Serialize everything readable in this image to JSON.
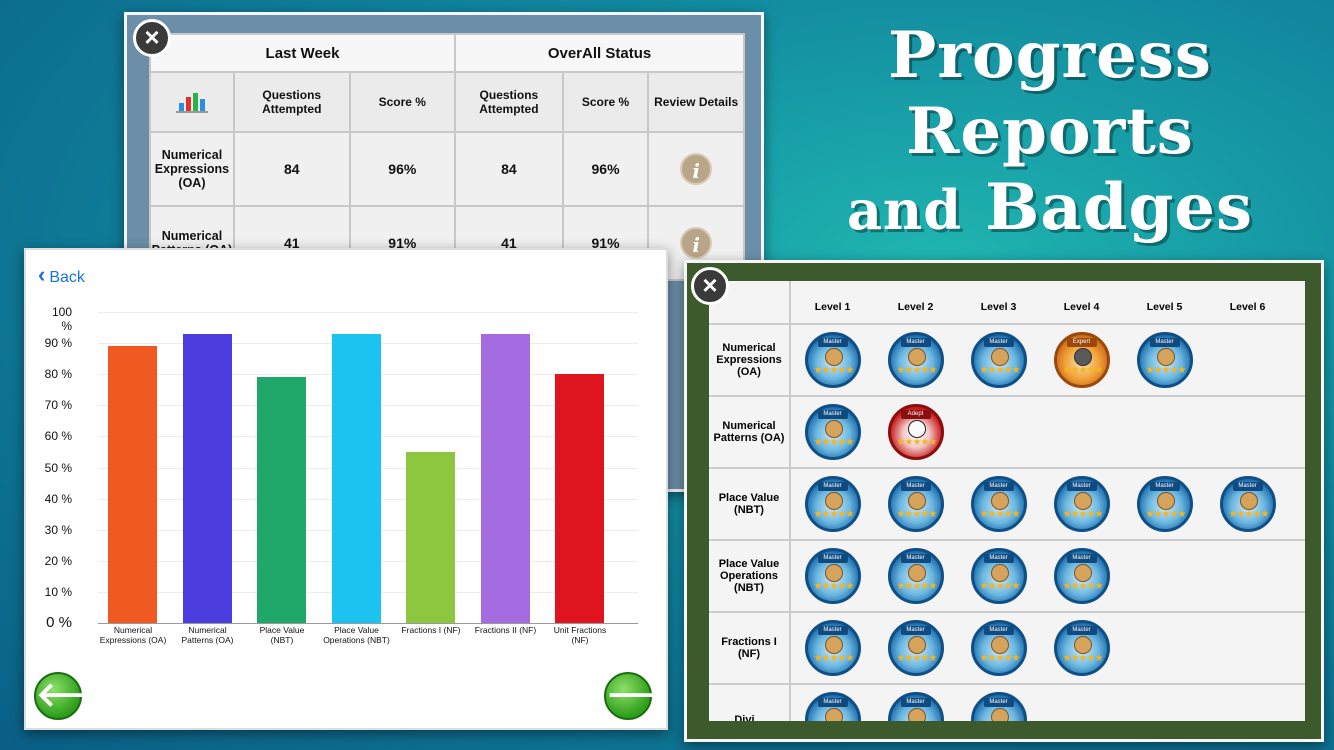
{
  "headline": {
    "line1": "Progress",
    "line2": "Reports",
    "line3_small": "and",
    "line3_big": "Badges"
  },
  "progress_table": {
    "close_label": "×",
    "group_headers": [
      "Last Week",
      "OverAll Status"
    ],
    "columns": [
      "Questions Attempted",
      "Score %",
      "Questions Attempted",
      "Score %",
      "Review Details"
    ],
    "rows": [
      {
        "topic": "Numerical Expressions (OA)",
        "lw_questions": "84",
        "lw_score": "96%",
        "all_questions": "84",
        "all_score": "96%",
        "info": "i"
      },
      {
        "topic": "Numerical Patterns (OA)",
        "lw_questions": "41",
        "lw_score": "91%",
        "all_questions": "41",
        "all_score": "91%",
        "info": "i"
      }
    ]
  },
  "chart_card": {
    "back_label": "Back",
    "prev_arrow": "🡐",
    "next_arrow": "🡒"
  },
  "chart_data": {
    "type": "bar",
    "categories": [
      "Numerical Expressions (OA)",
      "Numerical Patterns (OA)",
      "Place Value (NBT)",
      "Place Value Operations (NBT)",
      "Fractions I (NF)",
      "Fractions II (NF)",
      "Unit Fractions (NF)"
    ],
    "values": [
      89,
      93,
      79,
      93,
      55,
      93,
      80
    ],
    "colors": [
      "#f05a22",
      "#4b3de0",
      "#20a86a",
      "#1cc3f0",
      "#8dc63f",
      "#a46be0",
      "#e0141e"
    ],
    "yticks": [
      "0 %",
      "10 %",
      "20 %",
      "30 %",
      "40 %",
      "50 %",
      "60 %",
      "70 %",
      "80 %",
      "90 %",
      "100 %"
    ],
    "ylim": [
      0,
      100
    ],
    "title": "",
    "xlabel": "",
    "ylabel": "",
    "grid": true
  },
  "badge_table": {
    "close_label": "×",
    "levels": [
      "Level 1",
      "Level 2",
      "Level 3",
      "Level 4",
      "Level 5",
      "Level 6"
    ],
    "rows": [
      {
        "topic": "Numerical Expressions (OA)",
        "badges": [
          "Master",
          "Master",
          "Master",
          "Expert",
          "Master"
        ]
      },
      {
        "topic": "Numerical Patterns (OA)",
        "badges": [
          "Master",
          "Adept"
        ]
      },
      {
        "topic": "Place Value (NBT)",
        "badges": [
          "Master",
          "Master",
          "Master",
          "Master",
          "Master",
          "Master"
        ]
      },
      {
        "topic": "Place Value Operations (NBT)",
        "badges": [
          "Master",
          "Master",
          "Master",
          "Master"
        ]
      },
      {
        "topic": "Fractions I (NF)",
        "badges": [
          "Master",
          "Master",
          "Master",
          "Master"
        ]
      },
      {
        "topic": "Divi...",
        "badges": [
          "Master",
          "Master",
          "Master"
        ]
      }
    ]
  }
}
